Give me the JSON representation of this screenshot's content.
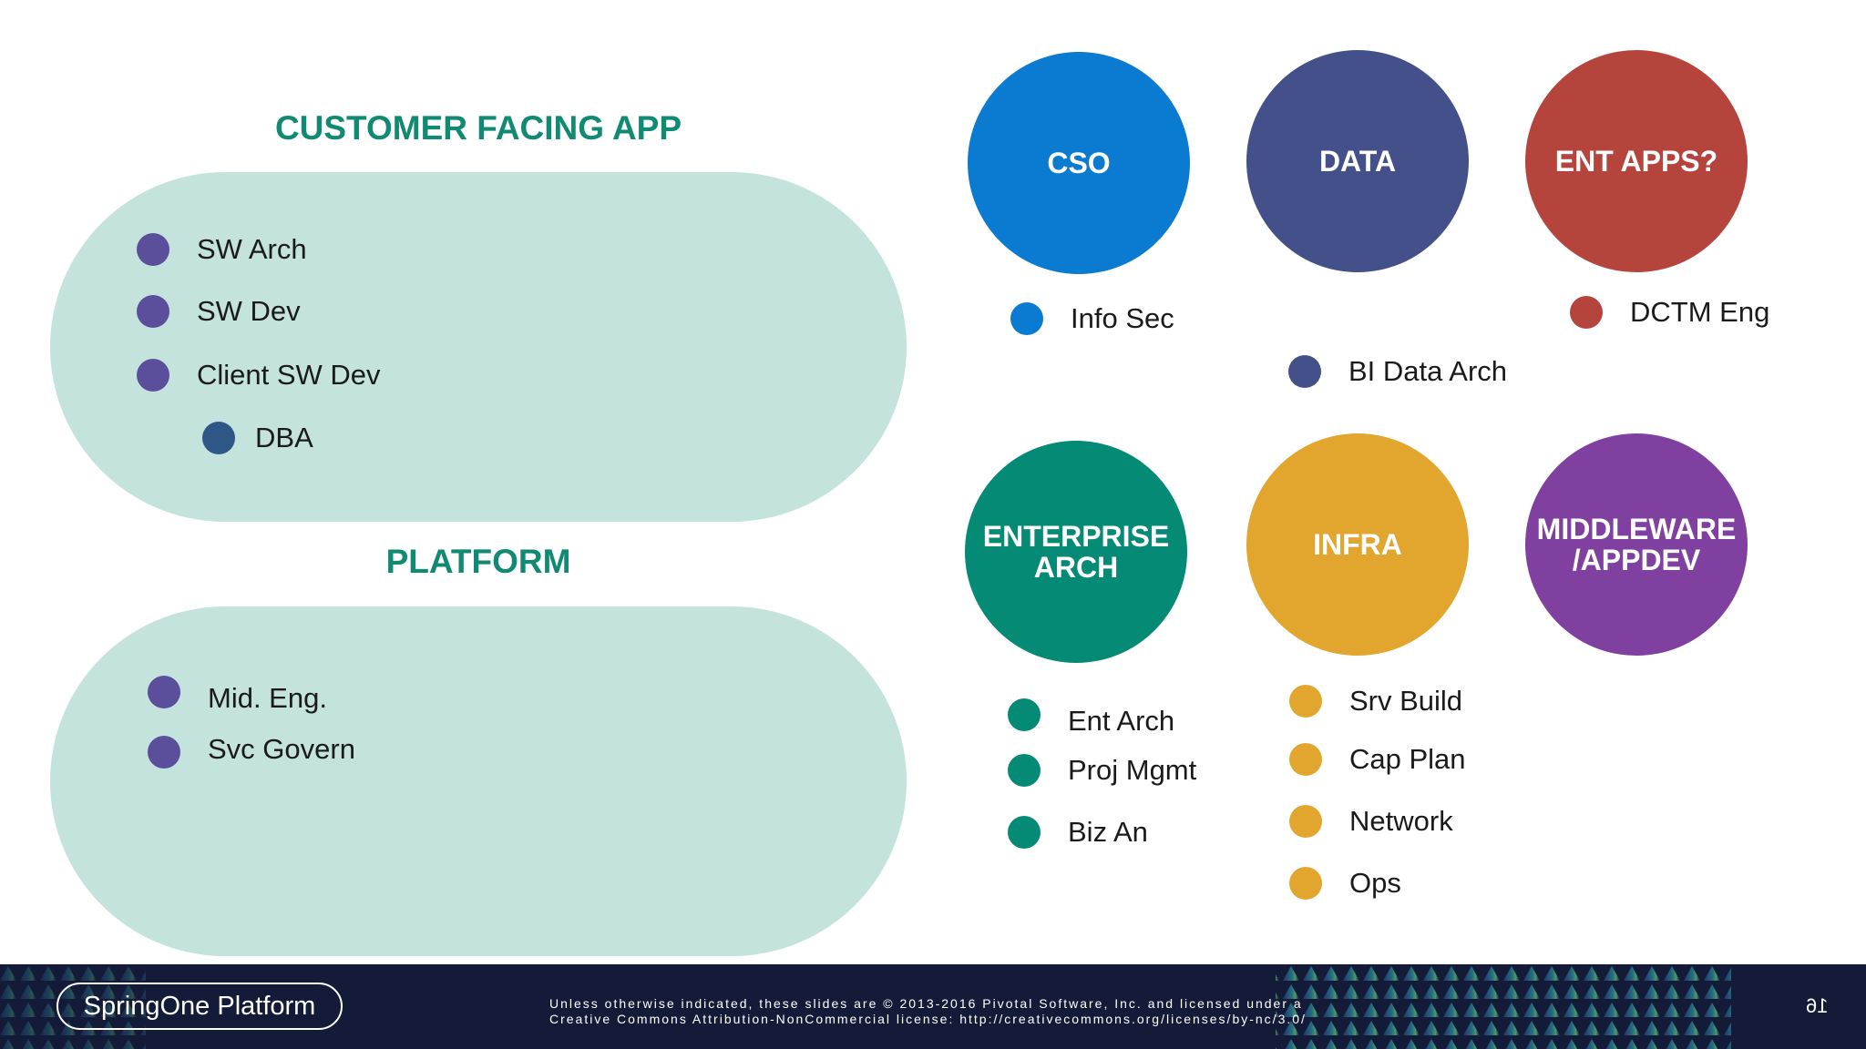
{
  "left": {
    "customer_facing": {
      "title": "CUSTOMER FACING APP",
      "items": [
        {
          "label": "SW Arch",
          "color": "#5b4e9a"
        },
        {
          "label": "SW Dev",
          "color": "#5b4e9a"
        },
        {
          "label": "Client SW Dev",
          "color": "#5b4e9a"
        },
        {
          "label": "DBA",
          "color": "#2e5787"
        }
      ]
    },
    "platform": {
      "title": "PLATFORM",
      "items": [
        {
          "label": "Mid. Eng.",
          "color": "#5b4e9a"
        },
        {
          "label": "Svc Govern",
          "color": "#5b4e9a"
        }
      ]
    }
  },
  "groups": [
    {
      "title": "CSO",
      "color": "#0a7bd0",
      "items": [
        {
          "label": "Info Sec"
        }
      ]
    },
    {
      "title": "DATA",
      "color": "#43508a",
      "items": [
        {
          "label": "BI Data Arch"
        }
      ]
    },
    {
      "title": "ENT APPS?",
      "color": "#b5443d",
      "items": [
        {
          "label": "DCTM Eng"
        }
      ]
    },
    {
      "title": "ENTERPRISE\nARCH",
      "color": "#058a75",
      "items": [
        {
          "label": "Ent Arch"
        },
        {
          "label": "Proj Mgmt"
        },
        {
          "label": "Biz An"
        }
      ]
    },
    {
      "title": "INFRA",
      "color": "#e2a52d",
      "items": [
        {
          "label": "Srv Build"
        },
        {
          "label": "Cap Plan"
        },
        {
          "label": "Network"
        },
        {
          "label": "Ops"
        }
      ]
    },
    {
      "title": "MIDDLEWARE\n/APPDEV",
      "color": "#7f40a0",
      "items": []
    }
  ],
  "footer": {
    "logo": "SpringOne Platform",
    "license_line1": "Unless otherwise indicated, these slides are © 2013-2016 Pivotal Software, Inc. and licensed under a",
    "license_line2": "Creative Commons Attribution-NonCommercial license: http://creativecommons.org/licenses/by-nc/3.0/",
    "page_number": "16",
    "background_color": "#141b38"
  }
}
